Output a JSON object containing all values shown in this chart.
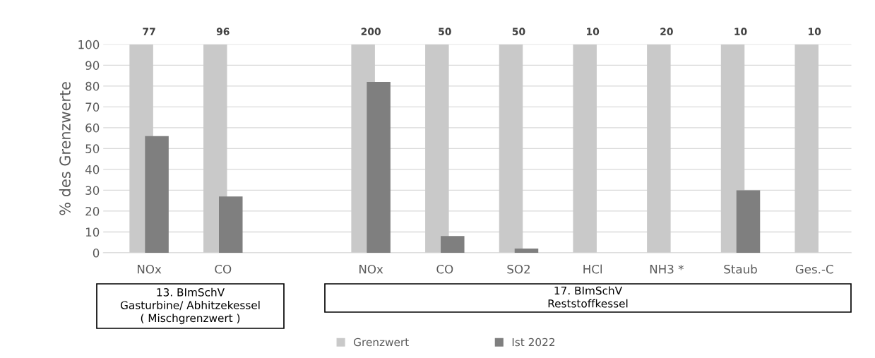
{
  "chart_data": {
    "type": "bar",
    "categories": [
      "NOx",
      "CO",
      null,
      "NOx",
      "CO",
      "SO2",
      "HCl",
      "NH3 *",
      "Staub",
      "Ges.-C"
    ],
    "series": [
      {
        "name": "Grenzwert",
        "color": "#c9c9c9",
        "values": [
          100,
          100,
          null,
          100,
          100,
          100,
          100,
          100,
          100,
          100
        ]
      },
      {
        "name": "Ist 2022",
        "color": "#7f7f7f",
        "values": [
          56,
          27,
          null,
          82,
          8,
          2,
          null,
          null,
          30,
          null
        ]
      }
    ],
    "ylabel": "% des Grenzwerte",
    "ylim": [
      0,
      100
    ],
    "yticks": [
      0,
      10,
      20,
      30,
      40,
      50,
      60,
      70,
      80,
      90,
      100
    ],
    "grid": "y",
    "legend": "bottom",
    "annotations": [
      "77",
      "96",
      "200",
      "50",
      "50",
      "10",
      "20",
      "10",
      "10",
      "13. BImSchV\nGasturbine/ Abhitzekessel\n( Mischgrenzwert )",
      "17. BImSchV\nReststoffkessel"
    ]
  }
}
